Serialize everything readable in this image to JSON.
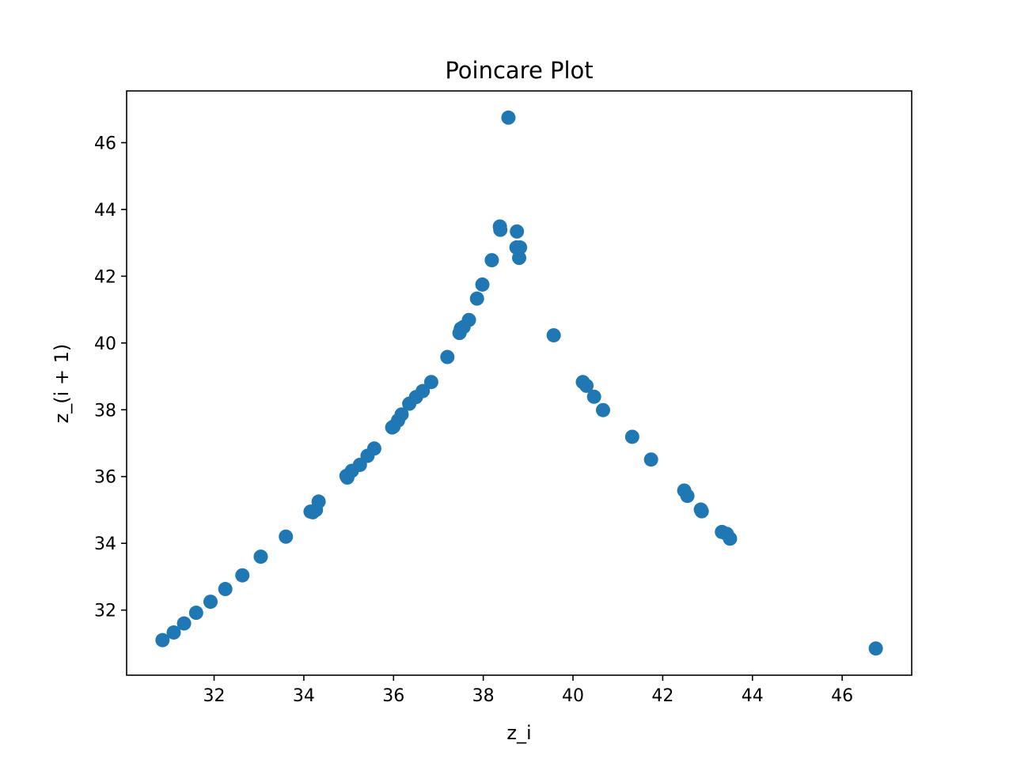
{
  "chart_data": {
    "type": "scatter",
    "title": "Poincare Plot",
    "xlabel": "z_i",
    "ylabel": "z_(i + 1)",
    "xlim": [
      30.05,
      47.55
    ],
    "ylim": [
      30.05,
      47.55
    ],
    "xticks": [
      32,
      34,
      36,
      38,
      40,
      42,
      44,
      46
    ],
    "yticks": [
      32,
      34,
      36,
      38,
      40,
      42,
      44,
      46
    ],
    "tick_labels": {
      "x": [
        "32",
        "34",
        "36",
        "38",
        "40",
        "42",
        "44",
        "46"
      ],
      "y": [
        "32",
        "34",
        "36",
        "38",
        "40",
        "42",
        "44",
        "46"
      ]
    },
    "marker_color": "#1f77b4",
    "grid": false,
    "legend": "none",
    "series": [
      {
        "x": [
          30.85,
          31.1,
          31.33,
          31.6,
          31.92,
          32.25,
          32.63,
          33.04,
          33.6,
          34.15,
          34.2,
          34.27,
          34.33,
          34.95,
          34.97,
          35.07,
          35.25,
          35.42,
          35.57,
          35.97,
          36.0,
          36.1,
          36.18,
          36.35,
          36.5,
          36.65,
          36.84,
          37.2,
          37.47,
          37.5,
          37.56,
          37.68,
          37.86,
          37.98,
          38.19,
          38.37,
          38.38,
          38.56,
          38.74,
          38.75,
          38.8,
          38.82,
          39.57,
          40.22,
          40.3,
          40.47,
          40.67,
          41.32,
          41.74,
          42.48,
          42.55,
          42.85,
          42.87,
          43.32,
          43.43,
          43.5,
          46.75
        ],
        "y": [
          31.1,
          31.33,
          31.6,
          31.92,
          32.25,
          32.63,
          33.04,
          33.6,
          34.2,
          34.95,
          34.93,
          35.0,
          35.25,
          36.02,
          35.97,
          36.17,
          36.35,
          36.62,
          36.84,
          37.47,
          37.5,
          37.68,
          37.86,
          38.18,
          38.38,
          38.56,
          38.83,
          39.58,
          40.3,
          40.43,
          40.48,
          40.69,
          41.33,
          41.75,
          42.48,
          43.49,
          43.39,
          46.75,
          42.86,
          43.34,
          42.55,
          42.86,
          40.23,
          38.83,
          38.72,
          38.39,
          37.99,
          37.19,
          36.51,
          35.58,
          35.42,
          35.01,
          34.96,
          34.34,
          34.28,
          34.14,
          30.85
        ]
      }
    ]
  }
}
